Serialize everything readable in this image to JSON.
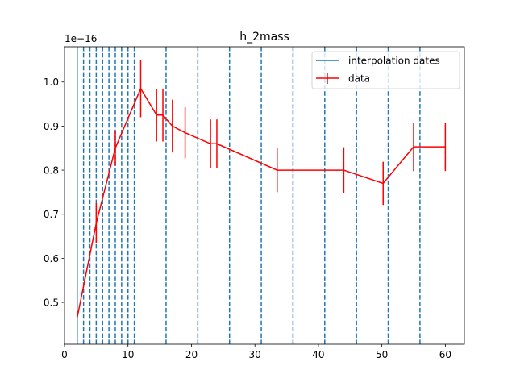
{
  "chart_data": {
    "type": "line",
    "title": "h_2mass",
    "xlabel": "",
    "ylabel": "",
    "y_scale_label": "1e−16",
    "xlim": [
      0,
      63
    ],
    "ylim": [
      0.405,
      1.08
    ],
    "x_ticks": [
      0,
      10,
      20,
      30,
      40,
      50,
      60
    ],
    "x_tick_labels": [
      "0",
      "10",
      "20",
      "30",
      "40",
      "50",
      "60"
    ],
    "y_ticks": [
      0.5,
      0.6,
      0.7,
      0.8,
      0.9,
      1.0
    ],
    "y_tick_labels": [
      "0.5",
      "0.6",
      "0.7",
      "0.8",
      "0.9",
      "1.0"
    ],
    "grid": false,
    "legend_position": "top-right",
    "interpolation_dates": {
      "name": "interpolation dates",
      "color": "#1f77b4",
      "solid": [
        2
      ],
      "dashed": [
        3,
        4,
        5,
        6,
        7,
        8,
        9,
        10,
        11,
        16,
        21,
        26,
        31,
        36,
        41,
        46,
        51,
        56
      ]
    },
    "series": [
      {
        "name": "data",
        "color": "#ff0000",
        "x": [
          2,
          5,
          8,
          12,
          14.5,
          15.5,
          17,
          19,
          23,
          24,
          33.5,
          44,
          50.2,
          55,
          60
        ],
        "y": [
          0.465,
          0.68,
          0.85,
          0.985,
          0.925,
          0.925,
          0.9,
          0.885,
          0.86,
          0.86,
          0.8,
          0.8,
          0.77,
          0.853,
          0.853
        ],
        "yerr": [
          0,
          0.045,
          0.04,
          0.065,
          0.06,
          0.06,
          0.06,
          0.058,
          0.055,
          0.055,
          0.05,
          0.052,
          0.049,
          0.055,
          0.055
        ]
      }
    ]
  }
}
